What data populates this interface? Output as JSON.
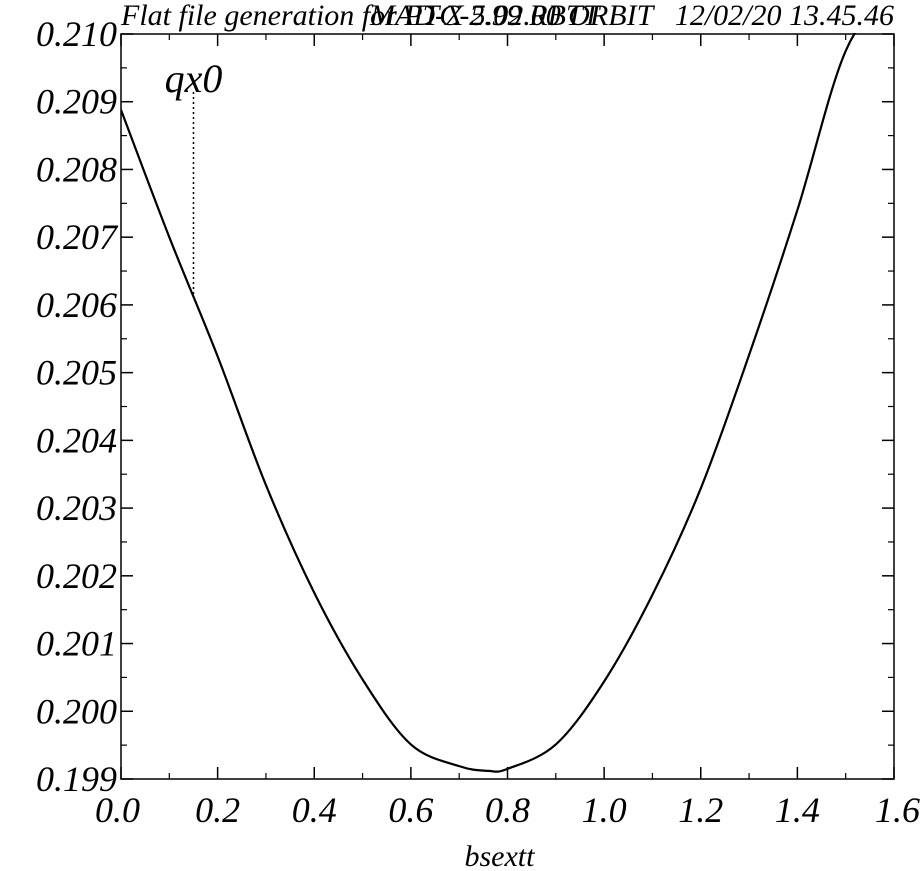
{
  "header": {
    "title_left": "Flat file generation for PTC-2.99 RBTT",
    "title_overlap": "MAD-X 5.02.00 ORBIT",
    "title_right": "12/02/20 13.45.46"
  },
  "chart_data": {
    "type": "line",
    "xlabel": "bsextt",
    "ylabel": "",
    "series_label": "qx0",
    "xlim": [
      0.0,
      1.6
    ],
    "ylim": [
      0.199,
      0.21
    ],
    "x_ticks": [
      "0.0",
      "0.2",
      "0.4",
      "0.6",
      "0.8",
      "1.0",
      "1.2",
      "1.4",
      "1.6"
    ],
    "y_ticks": [
      "0.199",
      "0.200",
      "0.201",
      "0.202",
      "0.203",
      "0.204",
      "0.205",
      "0.206",
      "0.207",
      "0.208",
      "0.209",
      "0.210"
    ],
    "series": [
      {
        "x": [
          0.0,
          0.1,
          0.2,
          0.3,
          0.4,
          0.5,
          0.6,
          0.7,
          0.76,
          0.8,
          0.9,
          1.0,
          1.1,
          1.2,
          1.3,
          1.4,
          1.5,
          1.6
        ],
        "y": [
          0.20888,
          0.207,
          0.20524,
          0.20334,
          0.20175,
          0.20047,
          0.19951,
          0.19919,
          0.19912,
          0.19915,
          0.19951,
          0.20044,
          0.20172,
          0.20329,
          0.20526,
          0.2074,
          0.20975,
          0.2107
        ]
      }
    ],
    "marker_x": 0.15,
    "grid": false,
    "legend": "none"
  }
}
